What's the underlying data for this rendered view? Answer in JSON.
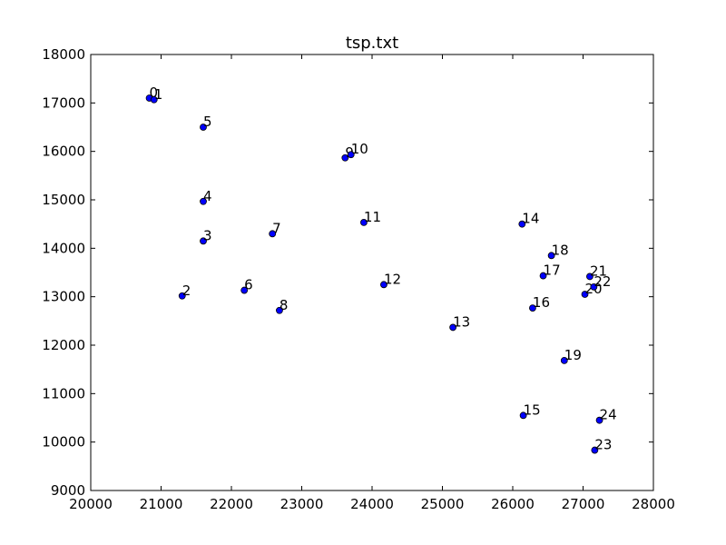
{
  "chart_data": {
    "type": "scatter",
    "title": "tsp.txt",
    "xlabel": "",
    "ylabel": "",
    "xlim": [
      20000,
      28000
    ],
    "ylim": [
      9000,
      18000
    ],
    "xticks": [
      20000,
      21000,
      22000,
      23000,
      24000,
      25000,
      26000,
      27000,
      28000
    ],
    "yticks": [
      9000,
      10000,
      11000,
      12000,
      13000,
      14000,
      15000,
      16000,
      17000,
      18000
    ],
    "grid": false,
    "point_color": "#0000ff",
    "points": [
      {
        "label": "0",
        "x": 20833,
        "y": 17100
      },
      {
        "label": "1",
        "x": 20900,
        "y": 17067
      },
      {
        "label": "2",
        "x": 21300,
        "y": 13017
      },
      {
        "label": "3",
        "x": 21600,
        "y": 14150
      },
      {
        "label": "4",
        "x": 21600,
        "y": 14967
      },
      {
        "label": "5",
        "x": 21600,
        "y": 16500
      },
      {
        "label": "6",
        "x": 22183,
        "y": 13133
      },
      {
        "label": "7",
        "x": 22583,
        "y": 14300
      },
      {
        "label": "8",
        "x": 22683,
        "y": 12717
      },
      {
        "label": "9",
        "x": 23617,
        "y": 15867
      },
      {
        "label": "10",
        "x": 23700,
        "y": 15933
      },
      {
        "label": "11",
        "x": 23883,
        "y": 14533
      },
      {
        "label": "12",
        "x": 24167,
        "y": 13250
      },
      {
        "label": "13",
        "x": 25150,
        "y": 12367
      },
      {
        "label": "14",
        "x": 26133,
        "y": 14500
      },
      {
        "label": "15",
        "x": 26150,
        "y": 10550
      },
      {
        "label": "16",
        "x": 26283,
        "y": 12767
      },
      {
        "label": "17",
        "x": 26433,
        "y": 13433
      },
      {
        "label": "18",
        "x": 26550,
        "y": 13850
      },
      {
        "label": "19",
        "x": 26733,
        "y": 11683
      },
      {
        "label": "20",
        "x": 27026,
        "y": 13050
      },
      {
        "label": "21",
        "x": 27096,
        "y": 13417
      },
      {
        "label": "22",
        "x": 27153,
        "y": 13203
      },
      {
        "label": "23",
        "x": 27166,
        "y": 9833
      },
      {
        "label": "24",
        "x": 27233,
        "y": 10450
      }
    ]
  }
}
